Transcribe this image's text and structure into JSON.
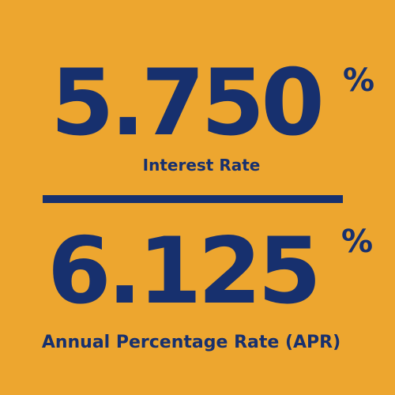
{
  "colors": {
    "background": "#EDA62F",
    "text": "#17306E"
  },
  "interest_rate": {
    "value": "5.750",
    "percent_sign": "%",
    "label": "Interest Rate"
  },
  "apr": {
    "value": "6.125",
    "percent_sign": "%",
    "label": "Annual Percentage Rate (APR)"
  }
}
